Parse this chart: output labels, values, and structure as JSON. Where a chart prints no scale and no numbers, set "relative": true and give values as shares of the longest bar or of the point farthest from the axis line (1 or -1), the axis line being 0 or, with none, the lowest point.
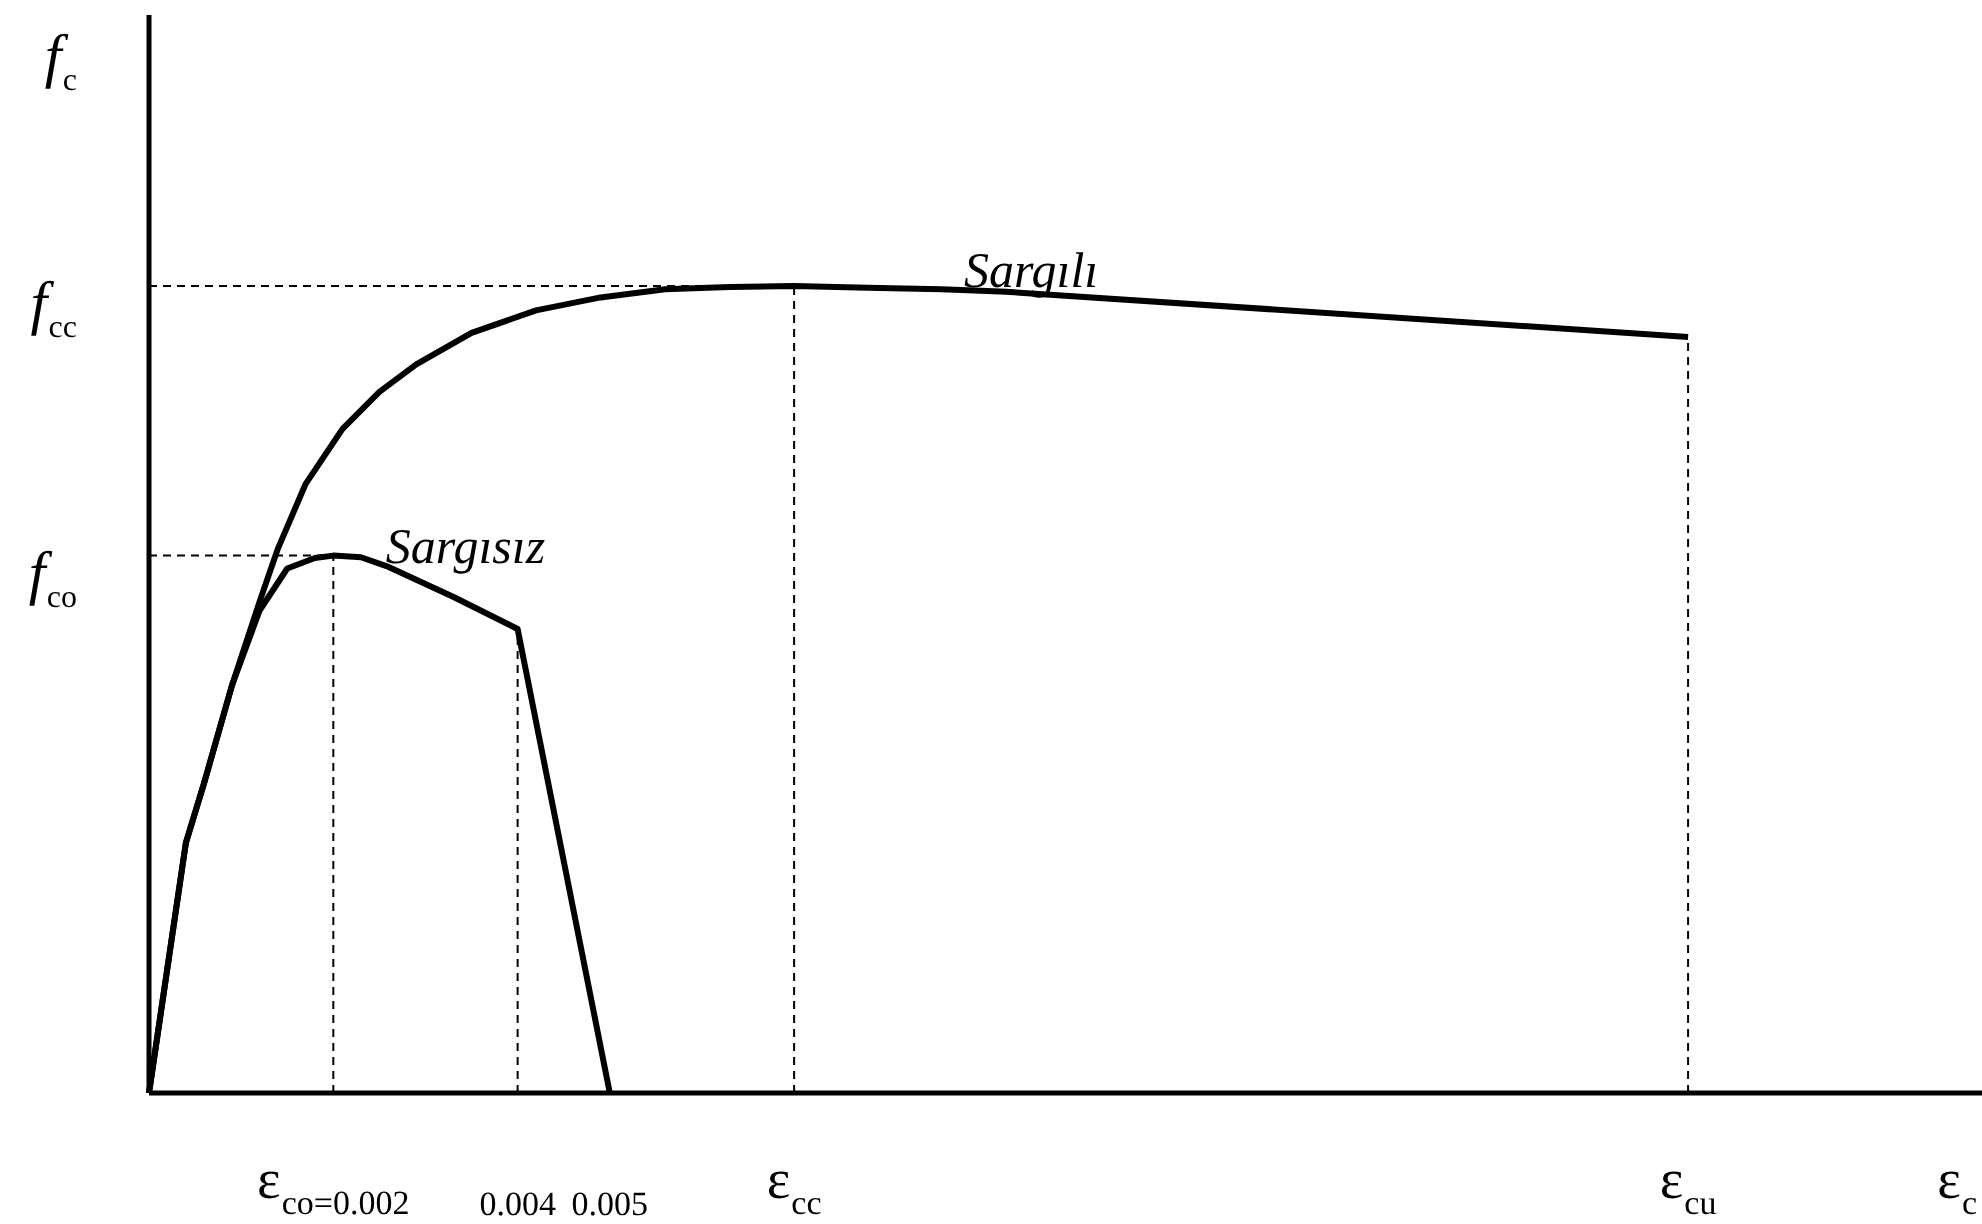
{
  "chart_data": {
    "type": "line",
    "relative": true,
    "xlabel": "ε$_{c}$",
    "ylabel": "f$_{c}$",
    "xlim": [
      0,
      0.0199
    ],
    "xticks": [
      0.004,
      0.005
    ],
    "series": [
      {
        "name": "Sargılı",
        "color": "#000000",
        "x": [
          0,
          0.0002,
          0.0004,
          0.0006,
          0.0009,
          0.0012,
          0.0014,
          0.0017,
          0.0021,
          0.0025,
          0.0029,
          0.0035,
          0.0042,
          0.0049,
          0.0056,
          0.0063,
          0.007,
          0.0078,
          0.0086,
          0.0093,
          0.0167
        ],
        "values": [
          0,
          0.155,
          0.31,
          0.385,
          0.505,
          0.609,
          0.675,
          0.755,
          0.823,
          0.869,
          0.903,
          0.942,
          0.97,
          0.986,
          0.996,
          0.999,
          1,
          0.998,
          0.996,
          0.993,
          0.937
        ]
      },
      {
        "name": "Sargısız",
        "color": "#000000",
        "x": [
          0,
          0.0002,
          0.0004,
          0.0006,
          0.0009,
          0.0012,
          0.0015,
          0.0018,
          0.002,
          0.0023,
          0.0026,
          0.0033,
          0.004,
          0.005
        ],
        "values": [
          0,
          0.155,
          0.31,
          0.385,
          0.505,
          0.598,
          0.65,
          0.663,
          0.666,
          0.664,
          0.652,
          0.615,
          0.575,
          0
        ]
      }
    ],
    "ref_lines": [
      {
        "axis": "y",
        "value": 1,
        "label": "f$_{cc}$",
        "color": "#000000",
        "line_style": "dashed"
      },
      {
        "axis": "y",
        "value": 0.666,
        "label": "f$_{co}$",
        "color": "#000000",
        "line_style": "dashed"
      },
      {
        "axis": "x",
        "value": 0.002,
        "label": "ε$_{co=0.002}$",
        "color": "#000000",
        "line_style": "dashed"
      },
      {
        "axis": "x",
        "value": 0.004,
        "color": "#000000",
        "line_style": "dashed"
      },
      {
        "axis": "x",
        "value": 0.007,
        "label": "ε$_{cc}$",
        "color": "#000000",
        "line_style": "dashed"
      },
      {
        "axis": "x",
        "value": 0.0167,
        "label": "ε$_{cu}$",
        "color": "#000000",
        "line_style": "dashed"
      }
    ]
  }
}
